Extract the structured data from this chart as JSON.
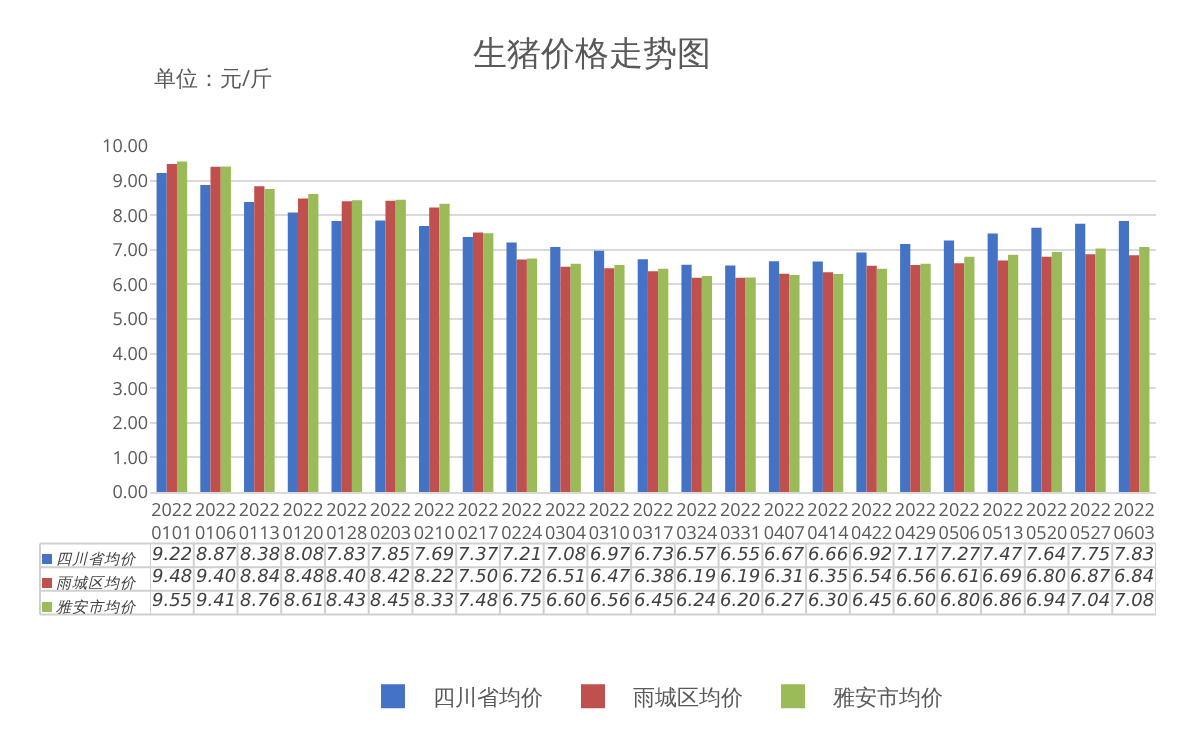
{
  "chart_data": {
    "type": "bar",
    "title": "生猪价格走势图",
    "ylabel": "单位：元/斤",
    "categories": [
      "20220101",
      "20220106",
      "20220113",
      "20220120",
      "20220128",
      "20220203",
      "20220210",
      "20220217",
      "20220224",
      "20220304",
      "20220310",
      "20220317",
      "20220324",
      "20220331",
      "20220407",
      "20220414",
      "20220422",
      "20220429",
      "20220506",
      "20220513",
      "20220520",
      "20220527",
      "20220603"
    ],
    "series": [
      {
        "name": "四川省均价",
        "color": "#4472c4",
        "values": [
          9.22,
          8.87,
          8.38,
          8.08,
          7.83,
          7.85,
          7.69,
          7.37,
          7.21,
          7.08,
          6.97,
          6.73,
          6.57,
          6.55,
          6.67,
          6.66,
          6.92,
          7.17,
          7.27,
          7.47,
          7.64,
          7.75,
          7.83
        ],
        "value_labels": [
          "9.22",
          "8.87",
          "8.38",
          "8.08",
          "7.83",
          "7.85",
          "7.69",
          "7.37",
          "7.21",
          "7.08",
          "6.97",
          "6.73",
          "6.57",
          "6.55",
          "6.67",
          "6.66",
          "6.92",
          "7.17",
          "7.27",
          "7.47",
          "7.64",
          "7.75",
          "7.83"
        ]
      },
      {
        "name": "雨城区均价",
        "color": "#c0504d",
        "values": [
          9.48,
          9.4,
          8.84,
          8.48,
          8.4,
          8.42,
          8.22,
          7.5,
          6.72,
          6.51,
          6.47,
          6.38,
          6.19,
          6.19,
          6.31,
          6.35,
          6.54,
          6.56,
          6.61,
          6.69,
          6.8,
          6.87,
          6.84
        ],
        "value_labels": [
          "9.48",
          "9.40",
          "8.84",
          "8.48",
          "8.40",
          "8.42",
          "8.22",
          "7.50",
          "6.72",
          "6.51",
          "6.47",
          "6.38",
          "6.19",
          "6.19",
          "6.31",
          "6.35",
          "6.54",
          "6.56",
          "6.61",
          "6.69",
          "6.80",
          "6.87",
          "6.84"
        ]
      },
      {
        "name": "雅安市均价",
        "color": "#9bbb59",
        "values": [
          9.55,
          9.41,
          8.76,
          8.61,
          8.43,
          8.45,
          8.33,
          7.48,
          6.75,
          6.6,
          6.56,
          6.45,
          6.24,
          6.2,
          6.27,
          6.3,
          6.45,
          6.6,
          6.8,
          6.86,
          6.94,
          7.04,
          7.08
        ],
        "value_labels": [
          "9.55",
          "9.41",
          "8.76",
          "8.61",
          "8.43",
          "8.45",
          "8.33",
          "7.48",
          "6.75",
          "6.60",
          "6.56",
          "6.45",
          "6.24",
          "6.20",
          "6.27",
          "6.30",
          "6.45",
          "6.60",
          "6.80",
          "6.86",
          "6.94",
          "7.04",
          "7.08"
        ]
      }
    ],
    "ylim": [
      0,
      10
    ],
    "yticks": [
      {
        "value": 0,
        "label": "0.00"
      },
      {
        "value": 1,
        "label": "1.00"
      },
      {
        "value": 2,
        "label": "2.00"
      },
      {
        "value": 3,
        "label": "3.00"
      },
      {
        "value": 4,
        "label": "4.00"
      },
      {
        "value": 5,
        "label": "5.00"
      },
      {
        "value": 6,
        "label": "6.00"
      },
      {
        "value": 7,
        "label": "7.00"
      },
      {
        "value": 8,
        "label": "8.00"
      },
      {
        "value": 9,
        "label": "9.00"
      },
      {
        "value": 10,
        "label": "10.00"
      }
    ],
    "grid": "y",
    "legend": "bottom"
  }
}
